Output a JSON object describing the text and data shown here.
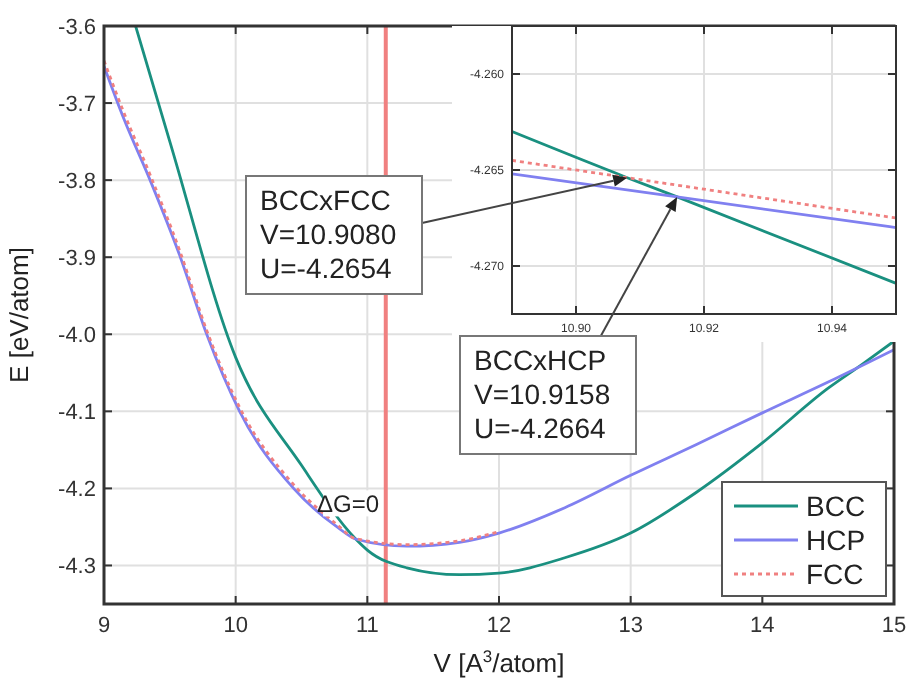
{
  "chart_data": [
    {
      "type": "line",
      "xlabel": "V [A$^{3}$/atom]",
      "ylabel": "E [eV/atom]",
      "x": [
        9.24,
        9.5,
        10,
        10.5,
        10.908,
        11,
        11.3,
        11.7,
        12,
        12.5,
        13,
        13.5,
        14,
        14.5,
        14.75,
        15
      ],
      "xlim": [
        9,
        15
      ],
      "ylim": [
        -4.35,
        -3.6
      ],
      "xticks": [
        9,
        10,
        11,
        12,
        13,
        14,
        15
      ],
      "yticks": [
        {
          "value": -3.6,
          "label": "-3.6"
        },
        {
          "value": -3.7,
          "label": "-3.7"
        },
        {
          "value": -3.8,
          "label": "-3.8"
        },
        {
          "value": -3.9,
          "label": "-3.9"
        },
        {
          "value": -4.0,
          "label": "-4.0"
        },
        {
          "value": -4.1,
          "label": "-4.1"
        },
        {
          "value": -4.2,
          "label": "-4.2"
        },
        {
          "value": -4.3,
          "label": "-4.3"
        }
      ],
      "grid": true,
      "legend": "bottom right",
      "annotations": [
        "ΔG=0"
      ],
      "series": [
        {
          "name": "BCC",
          "color": "#1a9080",
          "line_style": "solid",
          "values": [
            -3.6,
            -3.75,
            -4.03,
            -4.17,
            -4.265,
            -4.28,
            -4.303,
            -4.312,
            -4.31,
            -4.29,
            -4.258,
            -4.205,
            -4.141,
            -4.07,
            -4.04,
            -4.009
          ]
        },
        {
          "name": "HCP",
          "color": "#8080f0",
          "line_style": "solid",
          "x": [
            9,
            9.15,
            9.35,
            9.58,
            9.78,
            10.03,
            10.44,
            10.77,
            10.916,
            11.3,
            11.7,
            12,
            12.5,
            13,
            13.5,
            14,
            14.5,
            15
          ],
          "values": [
            -3.652,
            -3.72,
            -3.8,
            -3.9,
            -4.0,
            -4.1,
            -4.2,
            -4.25,
            -4.266,
            -4.275,
            -4.27,
            -4.258,
            -4.225,
            -4.183,
            -4.143,
            -4.102,
            -4.062,
            -4.02
          ]
        },
        {
          "name": "FCC",
          "color": "#f08080",
          "line_style": "dotted",
          "x": [
            9,
            9.15,
            9.35,
            9.58,
            9.78,
            10.03,
            10.44,
            10.77,
            10.908,
            11.3,
            11.7,
            12
          ],
          "values": [
            -3.645,
            -3.712,
            -3.793,
            -3.894,
            -3.995,
            -4.095,
            -4.195,
            -4.247,
            -4.265,
            -4.273,
            -4.268,
            -4.256
          ]
        }
      ],
      "ref_lines": [
        {
          "axis": "x",
          "value": 11.14,
          "color": "#f08080"
        }
      ]
    },
    {
      "type": "line",
      "xlim": [
        10.89,
        10.95
      ],
      "ylim": [
        -4.2725,
        -4.2575
      ],
      "xticks": [
        {
          "value": 10.9,
          "label": "10.90"
        },
        {
          "value": 10.92,
          "label": "10.92"
        },
        {
          "value": 10.94,
          "label": "10.94"
        }
      ],
      "yticks": [
        {
          "value": -4.26,
          "label": "-4.260"
        },
        {
          "value": -4.265,
          "label": "-4.265"
        },
        {
          "value": -4.27,
          "label": "-4.270"
        }
      ],
      "grid": true,
      "legend": false,
      "series": [
        {
          "color": "#1a9080",
          "line_style": "solid",
          "x": [
            10.89,
            10.908,
            10.9158,
            10.95
          ],
          "values": [
            -4.263,
            -4.2654,
            -4.2664,
            -4.2709
          ]
        },
        {
          "color": "#8080f0",
          "line_style": "solid",
          "x": [
            10.89,
            10.9158,
            10.95
          ],
          "values": [
            -4.2652,
            -4.2664,
            -4.268
          ]
        },
        {
          "color": "#f08080",
          "line_style": "dotted",
          "x": [
            10.89,
            10.908,
            10.95
          ],
          "values": [
            -4.2645,
            -4.2654,
            -4.2675
          ]
        }
      ],
      "annotations": [
        {
          "text": "BCCxFCC\nV=10.9080\nU=-4.2654",
          "x": 10.908,
          "y": -4.2654
        },
        {
          "text": "BCCxHCP\nV=10.9158\nU=-4.2664",
          "x": 10.9158,
          "y": -4.2664
        }
      ]
    }
  ]
}
